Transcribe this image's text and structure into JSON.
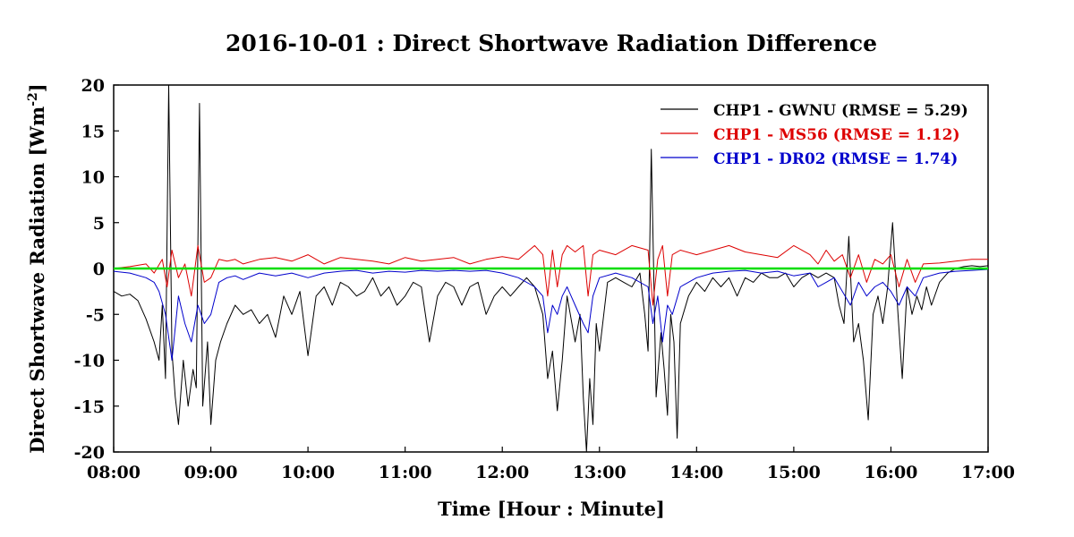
{
  "chart_data": {
    "type": "line",
    "title": "2016-10-01 : Direct Shortwave Radiation Difference",
    "xlabel": "Time  [Hour : Minute]",
    "ylabel_main": "Direct  Shortwave Radiation  [Wm",
    "ylabel_sup": "-2",
    "ylabel_end": "]",
    "xlim": [
      "08:00",
      "17:00"
    ],
    "ylim": [
      -20,
      20
    ],
    "x_ticks": [
      "08:00",
      "09:00",
      "10:00",
      "11:00",
      "12:00",
      "13:00",
      "14:00",
      "15:00",
      "16:00",
      "17:00"
    ],
    "y_ticks": [
      "20",
      "15",
      "10",
      "5",
      "0",
      "-5",
      "-10",
      "-15",
      "-20"
    ],
    "grid": false,
    "legend_position": "top-right",
    "reference_line": {
      "y": 0,
      "color": "#00dd00"
    },
    "series": [
      {
        "name": "CHP1 - GWNU (RMSE = 5.29)",
        "color": "#000000",
        "x": [
          "08:00",
          "08:05",
          "08:10",
          "08:15",
          "08:20",
          "08:25",
          "08:28",
          "08:30",
          "08:32",
          "08:34",
          "08:36",
          "08:38",
          "08:40",
          "08:43",
          "08:46",
          "08:49",
          "08:51",
          "08:53",
          "08:55",
          "08:58",
          "09:00",
          "09:03",
          "09:06",
          "09:10",
          "09:15",
          "09:20",
          "09:25",
          "09:30",
          "09:35",
          "09:40",
          "09:45",
          "09:50",
          "09:55",
          "10:00",
          "10:05",
          "10:10",
          "10:15",
          "10:20",
          "10:25",
          "10:30",
          "10:35",
          "10:40",
          "10:45",
          "10:50",
          "10:55",
          "11:00",
          "11:05",
          "11:10",
          "11:15",
          "11:20",
          "11:25",
          "11:30",
          "11:35",
          "11:40",
          "11:45",
          "11:50",
          "11:55",
          "12:00",
          "12:05",
          "12:10",
          "12:15",
          "12:20",
          "12:25",
          "12:28",
          "12:31",
          "12:34",
          "12:37",
          "12:40",
          "12:45",
          "12:48",
          "12:50",
          "12:52",
          "12:54",
          "12:56",
          "12:58",
          "13:00",
          "13:05",
          "13:10",
          "13:15",
          "13:20",
          "13:25",
          "13:28",
          "13:30",
          "13:32",
          "13:35",
          "13:38",
          "13:40",
          "13:42",
          "13:44",
          "13:46",
          "13:48",
          "13:50",
          "13:55",
          "14:00",
          "14:05",
          "14:10",
          "14:15",
          "14:20",
          "14:25",
          "14:30",
          "14:35",
          "14:40",
          "14:45",
          "14:50",
          "14:55",
          "15:00",
          "15:05",
          "15:10",
          "15:15",
          "15:20",
          "15:25",
          "15:28",
          "15:31",
          "15:34",
          "15:37",
          "15:40",
          "15:43",
          "15:46",
          "15:49",
          "15:52",
          "15:55",
          "15:58",
          "16:01",
          "16:04",
          "16:07",
          "16:10",
          "16:13",
          "16:16",
          "16:19",
          "16:22",
          "16:25",
          "16:30",
          "16:35",
          "16:40",
          "16:45",
          "16:50",
          "16:55",
          "17:00"
        ],
        "values": [
          -2.5,
          -3,
          -2.8,
          -3.5,
          -5.5,
          -8,
          -10,
          -4,
          -12,
          20,
          -9,
          -14,
          -17,
          -10,
          -15,
          -11,
          -13,
          18,
          -15,
          -8,
          -17,
          -10,
          -8,
          -6,
          -4,
          -5,
          -4.5,
          -6,
          -5,
          -7.5,
          -3,
          -5,
          -2.5,
          -9.5,
          -3,
          -2,
          -4,
          -1.5,
          -2,
          -3,
          -2.5,
          -1,
          -3,
          -2,
          -4,
          -3,
          -1.5,
          -2,
          -8,
          -3,
          -1.5,
          -2,
          -4,
          -2,
          -1.5,
          -5,
          -3,
          -2,
          -3,
          -2,
          -1,
          -2,
          -5,
          -12,
          -9,
          -15.5,
          -10,
          -3,
          -8,
          -5,
          -14,
          -20,
          -12,
          -17,
          -6,
          -9,
          -1.5,
          -1,
          -1.5,
          -2,
          -0.5,
          -5,
          -9,
          13,
          -14,
          -7,
          -11,
          -16,
          -5,
          -8,
          -18.5,
          -6,
          -3,
          -1.5,
          -2.5,
          -1,
          -2,
          -1,
          -3,
          -1,
          -1.5,
          -0.5,
          -1,
          -1,
          -0.5,
          -2,
          -1,
          -0.5,
          -1,
          -0.5,
          -1,
          -4,
          -6,
          3.5,
          -8,
          -6,
          -10,
          -16.5,
          -5,
          -3,
          -6,
          -2,
          5,
          -4,
          -12,
          -2,
          -5,
          -3,
          -4.5,
          -2,
          -4,
          -1.5,
          -0.5,
          0,
          0.2,
          0.3,
          0.2,
          0.3
        ]
      },
      {
        "name": "CHP1 - MS56 (RMSE = 1.12)",
        "color": "#dd0000",
        "x": [
          "08:00",
          "08:10",
          "08:20",
          "08:25",
          "08:30",
          "08:33",
          "08:36",
          "08:40",
          "08:44",
          "08:48",
          "08:52",
          "08:56",
          "09:00",
          "09:05",
          "09:10",
          "09:15",
          "09:20",
          "09:30",
          "09:40",
          "09:50",
          "10:00",
          "10:10",
          "10:20",
          "10:30",
          "10:40",
          "10:50",
          "11:00",
          "11:10",
          "11:20",
          "11:30",
          "11:40",
          "11:50",
          "12:00",
          "12:10",
          "12:20",
          "12:25",
          "12:28",
          "12:31",
          "12:34",
          "12:37",
          "12:40",
          "12:45",
          "12:50",
          "12:53",
          "12:56",
          "13:00",
          "13:10",
          "13:20",
          "13:30",
          "13:33",
          "13:36",
          "13:39",
          "13:42",
          "13:45",
          "13:50",
          "14:00",
          "14:10",
          "14:20",
          "14:30",
          "14:40",
          "14:50",
          "15:00",
          "15:10",
          "15:15",
          "15:20",
          "15:25",
          "15:30",
          "15:35",
          "15:40",
          "15:45",
          "15:50",
          "15:55",
          "16:00",
          "16:05",
          "16:10",
          "16:15",
          "16:20",
          "16:30",
          "16:40",
          "16:50",
          "17:00"
        ],
        "values": [
          0,
          0.2,
          0.5,
          -0.5,
          1,
          -2,
          2,
          -1,
          0.5,
          -3,
          2.5,
          -1.5,
          -1,
          1,
          0.8,
          1,
          0.5,
          1,
          1.2,
          0.8,
          1.5,
          0.5,
          1.2,
          1,
          0.8,
          0.5,
          1.2,
          0.8,
          1,
          1.2,
          0.5,
          1,
          1.3,
          1,
          2.5,
          1.5,
          -3,
          2,
          -2,
          1.5,
          2.5,
          1.8,
          2.5,
          -3,
          1.5,
          2,
          1.5,
          2.5,
          2,
          -4,
          1,
          2.5,
          -3,
          1.5,
          2,
          1.5,
          2,
          2.5,
          1.8,
          1.5,
          1.2,
          2.5,
          1.5,
          0.5,
          2,
          0.8,
          1.5,
          -1,
          1.5,
          -1.5,
          1,
          0.5,
          1.5,
          -2,
          1,
          -1.5,
          0.5,
          0.6,
          0.8,
          1,
          1
        ]
      },
      {
        "name": "CHP1 - DR02 (RMSE = 1.74)",
        "color": "#0000cc",
        "x": [
          "08:00",
          "08:10",
          "08:20",
          "08:25",
          "08:28",
          "08:32",
          "08:36",
          "08:40",
          "08:44",
          "08:48",
          "08:52",
          "08:56",
          "09:00",
          "09:05",
          "09:10",
          "09:15",
          "09:20",
          "09:30",
          "09:40",
          "09:50",
          "10:00",
          "10:10",
          "10:20",
          "10:30",
          "10:40",
          "10:50",
          "11:00",
          "11:10",
          "11:20",
          "11:30",
          "11:40",
          "11:50",
          "12:00",
          "12:10",
          "12:20",
          "12:25",
          "12:28",
          "12:31",
          "12:34",
          "12:37",
          "12:40",
          "12:45",
          "12:50",
          "12:53",
          "12:56",
          "13:00",
          "13:10",
          "13:20",
          "13:30",
          "13:33",
          "13:36",
          "13:39",
          "13:42",
          "13:45",
          "13:50",
          "14:00",
          "14:10",
          "14:20",
          "14:30",
          "14:40",
          "14:50",
          "15:00",
          "15:10",
          "15:15",
          "15:20",
          "15:25",
          "15:30",
          "15:35",
          "15:40",
          "15:45",
          "15:50",
          "15:55",
          "16:00",
          "16:05",
          "16:10",
          "16:15",
          "16:20",
          "16:30",
          "16:40",
          "16:50",
          "17:00"
        ],
        "values": [
          -0.3,
          -0.5,
          -1,
          -1.5,
          -2.5,
          -5,
          -10,
          -3,
          -6,
          -8,
          -4,
          -6,
          -5,
          -1.5,
          -1,
          -0.8,
          -1.2,
          -0.5,
          -0.8,
          -0.5,
          -1,
          -0.5,
          -0.3,
          -0.2,
          -0.5,
          -0.3,
          -0.4,
          -0.2,
          -0.3,
          -0.2,
          -0.3,
          -0.2,
          -0.5,
          -1,
          -2,
          -3,
          -7,
          -4,
          -5,
          -3,
          -2,
          -4,
          -6,
          -7,
          -3,
          -1,
          -0.5,
          -1,
          -2,
          -6,
          -3,
          -8,
          -4,
          -5,
          -2,
          -1,
          -0.5,
          -0.3,
          -0.2,
          -0.5,
          -0.3,
          -0.8,
          -0.5,
          -2,
          -1.5,
          -1,
          -2.5,
          -4,
          -1.5,
          -3,
          -2,
          -1.5,
          -2.5,
          -4,
          -2,
          -3,
          -1,
          -0.5,
          -0.3,
          -0.2,
          -0.1
        ]
      }
    ]
  }
}
